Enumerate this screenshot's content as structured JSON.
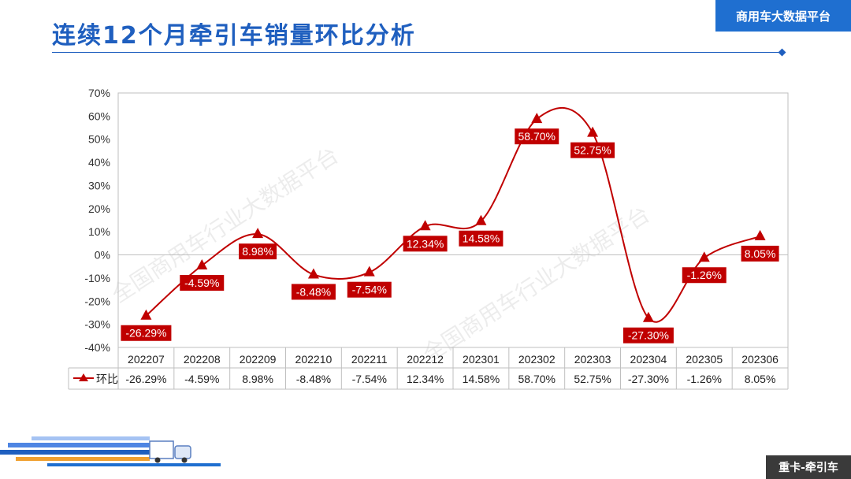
{
  "header": {
    "title": "连续12个月牵引车销量环比分析",
    "brand": "商用车大数据平台"
  },
  "footer": {
    "tag": "重卡-牵引车"
  },
  "watermarks": [
    "全国商用车行业大数据平台",
    "全国商用车行业大数据平台"
  ],
  "colors": {
    "series": "#c00000",
    "title": "#1f5fbf",
    "brand_bg": "#1f6fd0",
    "footer_bg": "#3a3a3a"
  },
  "chart_data": {
    "type": "line",
    "categories": [
      "202207",
      "202208",
      "202209",
      "202210",
      "202211",
      "202212",
      "202301",
      "202302",
      "202303",
      "202304",
      "202305",
      "202306"
    ],
    "series": [
      {
        "name": "环比",
        "values": [
          -26.29,
          -4.59,
          8.98,
          -8.48,
          -7.54,
          12.34,
          14.58,
          58.7,
          52.75,
          -27.3,
          -1.26,
          8.05
        ],
        "labels": [
          "-26.29%",
          "-4.59%",
          "8.98%",
          "-8.48%",
          "-7.54%",
          "12.34%",
          "14.58%",
          "58.70%",
          "52.75%",
          "-27.30%",
          "-1.26%",
          "8.05%"
        ],
        "color": "#c00000",
        "marker": "triangle",
        "smooth": true
      }
    ],
    "ylim": [
      -40,
      70
    ],
    "yticks": [
      -40,
      -30,
      -20,
      -10,
      0,
      10,
      20,
      30,
      40,
      50,
      60,
      70
    ],
    "ytick_labels": [
      "-40%",
      "-30%",
      "-20%",
      "-10%",
      "0%",
      "10%",
      "20%",
      "30%",
      "40%",
      "50%",
      "60%",
      "70%"
    ],
    "grid": false,
    "data_table": true,
    "xlabel": "",
    "ylabel": "",
    "title": ""
  }
}
